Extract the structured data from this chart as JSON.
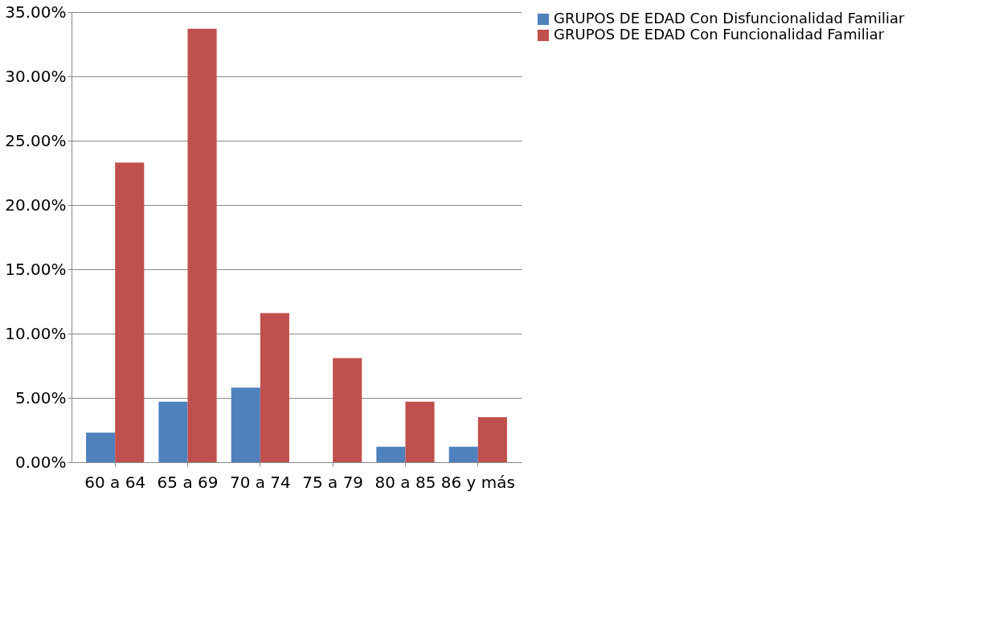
{
  "chart_data": {
    "type": "bar",
    "categories": [
      "60 a 64",
      "65 a 69",
      "70 a 74",
      "75 a 79",
      "80 a 85",
      "86 y más"
    ],
    "series": [
      {
        "name": "GRUPOS DE EDAD  Con Disfuncionalidad Familiar",
        "color": "#4f81bd",
        "values": [
          2.3,
          4.7,
          5.8,
          0,
          1.2,
          1.2
        ]
      },
      {
        "name": "GRUPOS DE EDAD  Con Funcionalidad Familiar",
        "color": "#c0504d",
        "values": [
          23.3,
          33.7,
          11.6,
          8.1,
          4.7,
          3.5
        ]
      }
    ],
    "ylim": [
      0,
      35
    ],
    "yticks": [
      {
        "value": 0,
        "label": "0.00%"
      },
      {
        "value": 5,
        "label": "5.00%"
      },
      {
        "value": 10,
        "label": "10.00%"
      },
      {
        "value": 15,
        "label": "15.00%"
      },
      {
        "value": 20,
        "label": "20.00%"
      },
      {
        "value": 25,
        "label": "25.00%"
      },
      {
        "value": 30,
        "label": "30.00%"
      },
      {
        "value": 35,
        "label": "35.00%"
      }
    ],
    "grid": "y",
    "legend": "right"
  }
}
